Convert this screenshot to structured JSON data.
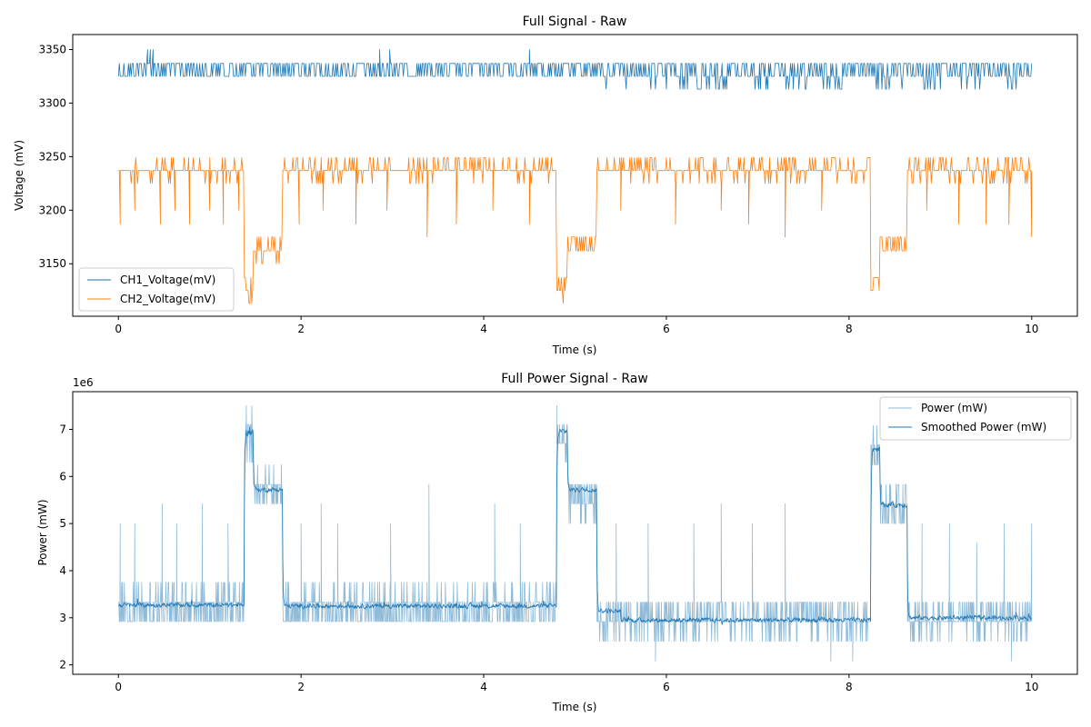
{
  "chart_data": [
    {
      "type": "line",
      "title": "Full Signal - Raw",
      "xlabel": "Time (s)",
      "ylabel": "Voltage (mV)",
      "xlim": [
        -0.5,
        10.5
      ],
      "ylim": [
        3101,
        3364
      ],
      "x_ticks": [
        0,
        2,
        4,
        6,
        8,
        10
      ],
      "x_tick_labels": [
        "0",
        "2",
        "4",
        "6",
        "8",
        "10"
      ],
      "y_ticks": [
        3150,
        3200,
        3250,
        3300,
        3350
      ],
      "y_tick_labels": [
        "3150",
        "3200",
        "3250",
        "3300",
        "3350"
      ],
      "grid": false,
      "legend": "lower-left",
      "series": [
        {
          "name": "CH1_Voltage(mV)",
          "color": "#1f77b4",
          "line_width": 0.8,
          "sample_dt": 0.01,
          "base_segments": [
            {
              "x0": 0,
              "x1": 10,
              "levels": [
                3337,
                3325
              ],
              "weights": [
                0.55,
                0.45
              ]
            }
          ],
          "excursion_segments": [
            {
              "x0": 5.3,
              "x1": 10,
              "value": 3313,
              "rate": 0.12
            }
          ],
          "spikes": [
            {
              "x": 0.32,
              "value": 3350
            },
            {
              "x": 0.35,
              "value": 3350
            },
            {
              "x": 0.38,
              "value": 3350
            },
            {
              "x": 2.86,
              "value": 3350
            },
            {
              "x": 2.97,
              "value": 3350
            },
            {
              "x": 4.5,
              "value": 3350
            }
          ]
        },
        {
          "name": "CH2_Voltage(mV)",
          "color": "#ff7f0e",
          "line_width": 0.8,
          "sample_dt": 0.01,
          "base_segments": [
            {
              "x0": 0,
              "x1": 1.38,
              "levels": [
                3237,
                3249,
                3225
              ],
              "weights": [
                0.78,
                0.12,
                0.1
              ]
            },
            {
              "x0": 1.38,
              "x1": 1.48,
              "levels": [
                3125,
                3137,
                3113
              ],
              "weights": [
                0.5,
                0.3,
                0.2
              ]
            },
            {
              "x0": 1.48,
              "x1": 1.8,
              "levels": [
                3162,
                3175,
                3150
              ],
              "weights": [
                0.55,
                0.3,
                0.15
              ]
            },
            {
              "x0": 1.8,
              "x1": 4.8,
              "levels": [
                3237,
                3249,
                3225
              ],
              "weights": [
                0.7,
                0.22,
                0.08
              ]
            },
            {
              "x0": 4.8,
              "x1": 4.92,
              "levels": [
                3125,
                3137,
                3113
              ],
              "weights": [
                0.55,
                0.3,
                0.15
              ]
            },
            {
              "x0": 4.92,
              "x1": 5.24,
              "levels": [
                3162,
                3175
              ],
              "weights": [
                0.6,
                0.4
              ]
            },
            {
              "x0": 5.24,
              "x1": 8.24,
              "levels": [
                3237,
                3249,
                3225
              ],
              "weights": [
                0.72,
                0.2,
                0.08
              ]
            },
            {
              "x0": 8.24,
              "x1": 8.34,
              "levels": [
                3125,
                3137
              ],
              "weights": [
                0.6,
                0.4
              ]
            },
            {
              "x0": 8.34,
              "x1": 8.64,
              "levels": [
                3162,
                3175
              ],
              "weights": [
                0.55,
                0.45
              ]
            },
            {
              "x0": 8.64,
              "x1": 10,
              "levels": [
                3237,
                3249,
                3225
              ],
              "weights": [
                0.72,
                0.2,
                0.08
              ]
            }
          ],
          "excursion_segments": [],
          "spikes": [
            {
              "x": 0.02,
              "value": 3187
            },
            {
              "x": 0.18,
              "value": 3200
            },
            {
              "x": 0.46,
              "value": 3187
            },
            {
              "x": 0.62,
              "value": 3200
            },
            {
              "x": 0.78,
              "value": 3187
            },
            {
              "x": 1.0,
              "value": 3200
            },
            {
              "x": 1.15,
              "value": 3187
            },
            {
              "x": 1.32,
              "value": 3200
            },
            {
              "x": 1.98,
              "value": 3187
            },
            {
              "x": 2.24,
              "value": 3200
            },
            {
              "x": 2.6,
              "value": 3187
            },
            {
              "x": 2.94,
              "value": 3200
            },
            {
              "x": 3.38,
              "value": 3175
            },
            {
              "x": 3.7,
              "value": 3187
            },
            {
              "x": 4.1,
              "value": 3200
            },
            {
              "x": 4.5,
              "value": 3187
            },
            {
              "x": 5.5,
              "value": 3200
            },
            {
              "x": 6.1,
              "value": 3187
            },
            {
              "x": 6.6,
              "value": 3200
            },
            {
              "x": 6.9,
              "value": 3187
            },
            {
              "x": 7.3,
              "value": 3175
            },
            {
              "x": 7.7,
              "value": 3200
            },
            {
              "x": 8.85,
              "value": 3200
            },
            {
              "x": 9.2,
              "value": 3187
            },
            {
              "x": 9.5,
              "value": 3187
            },
            {
              "x": 9.75,
              "value": 3187
            },
            {
              "x": 10.0,
              "value": 3175
            }
          ]
        }
      ]
    },
    {
      "type": "line",
      "title": "Full Power Signal - Raw",
      "xlabel": "Time (s)",
      "ylabel": "Power (mW)",
      "offset_label": "1e6",
      "xlim": [
        -0.5,
        10.5
      ],
      "ylim": [
        1.8,
        7.8
      ],
      "x_ticks": [
        0,
        2,
        4,
        6,
        8,
        10
      ],
      "x_tick_labels": [
        "0",
        "2",
        "4",
        "6",
        "8",
        "10"
      ],
      "y_ticks": [
        2,
        3,
        4,
        5,
        6,
        7
      ],
      "y_tick_labels": [
        "2",
        "3",
        "4",
        "5",
        "6",
        "7"
      ],
      "grid": false,
      "legend": "upper-right",
      "series": [
        {
          "name": "Power (mW)",
          "color": "#1f77b4",
          "opacity": 0.5,
          "line_width": 0.8,
          "sample_dt": 0.005,
          "base_segments": [
            {
              "x0": 0,
              "x1": 1.38,
              "levels": [
                2.92,
                3.33,
                3.75
              ],
              "weights": [
                0.45,
                0.43,
                0.12
              ]
            },
            {
              "x0": 1.38,
              "x1": 1.48,
              "levels": [
                6.7,
                7.1,
                6.3
              ],
              "weights": [
                0.5,
                0.35,
                0.15
              ]
            },
            {
              "x0": 1.48,
              "x1": 1.8,
              "levels": [
                5.42,
                5.83,
                6.25
              ],
              "weights": [
                0.42,
                0.46,
                0.12
              ]
            },
            {
              "x0": 1.8,
              "x1": 4.8,
              "levels": [
                2.92,
                3.33,
                3.75
              ],
              "weights": [
                0.45,
                0.45,
                0.1
              ]
            },
            {
              "x0": 4.8,
              "x1": 4.92,
              "levels": [
                6.7,
                7.1,
                6.3
              ],
              "weights": [
                0.45,
                0.45,
                0.1
              ]
            },
            {
              "x0": 4.92,
              "x1": 5.24,
              "levels": [
                5.42,
                5.83,
                5.0
              ],
              "weights": [
                0.5,
                0.4,
                0.1
              ]
            },
            {
              "x0": 5.24,
              "x1": 8.24,
              "levels": [
                2.92,
                3.33,
                2.5
              ],
              "weights": [
                0.55,
                0.3,
                0.15
              ]
            },
            {
              "x0": 8.24,
              "x1": 8.34,
              "levels": [
                6.25,
                6.67,
                7.08
              ],
              "weights": [
                0.4,
                0.4,
                0.2
              ]
            },
            {
              "x0": 8.34,
              "x1": 8.64,
              "levels": [
                5.0,
                5.42,
                5.83
              ],
              "weights": [
                0.4,
                0.4,
                0.2
              ]
            },
            {
              "x0": 8.64,
              "x1": 10,
              "levels": [
                2.92,
                3.33,
                2.5
              ],
              "weights": [
                0.55,
                0.3,
                0.15
              ]
            }
          ],
          "excursion_segments": [],
          "spikes": [
            {
              "x": 0.02,
              "value": 5.0
            },
            {
              "x": 0.18,
              "value": 5.0
            },
            {
              "x": 0.48,
              "value": 5.42
            },
            {
              "x": 0.64,
              "value": 5.0
            },
            {
              "x": 0.92,
              "value": 5.42
            },
            {
              "x": 1.2,
              "value": 5.0
            },
            {
              "x": 1.4,
              "value": 7.5
            },
            {
              "x": 1.46,
              "value": 7.5
            },
            {
              "x": 2.0,
              "value": 5.0
            },
            {
              "x": 2.22,
              "value": 5.42
            },
            {
              "x": 2.4,
              "value": 5.0
            },
            {
              "x": 2.98,
              "value": 5.0
            },
            {
              "x": 3.4,
              "value": 5.83
            },
            {
              "x": 4.12,
              "value": 5.42
            },
            {
              "x": 4.4,
              "value": 5.0
            },
            {
              "x": 4.8,
              "value": 7.5
            },
            {
              "x": 5.45,
              "value": 5.0
            },
            {
              "x": 5.8,
              "value": 5.0
            },
            {
              "x": 5.88,
              "value": 2.08
            },
            {
              "x": 6.3,
              "value": 5.0
            },
            {
              "x": 6.6,
              "value": 5.42
            },
            {
              "x": 6.94,
              "value": 5.0
            },
            {
              "x": 7.3,
              "value": 5.42
            },
            {
              "x": 7.8,
              "value": 2.08
            },
            {
              "x": 8.04,
              "value": 2.08
            },
            {
              "x": 8.8,
              "value": 5.0
            },
            {
              "x": 9.1,
              "value": 5.0
            },
            {
              "x": 9.4,
              "value": 4.58
            },
            {
              "x": 9.7,
              "value": 5.0
            },
            {
              "x": 9.78,
              "value": 2.08
            },
            {
              "x": 10.0,
              "value": 5.0
            }
          ]
        },
        {
          "name": "Smoothed Power (mW)",
          "color": "#1f77b4",
          "opacity": 1,
          "line_width": 0.8,
          "sample_dt": 0.005,
          "smooth_segments": [
            {
              "x0": 0,
              "x1": 1.38,
              "mean": 3.27,
              "noise": 0.07
            },
            {
              "x0": 1.38,
              "x1": 1.48,
              "mean": 6.95,
              "noise": 0.12
            },
            {
              "x0": 1.48,
              "x1": 1.8,
              "mean": 5.72,
              "noise": 0.07
            },
            {
              "x0": 1.8,
              "x1": 4.8,
              "mean": 3.25,
              "noise": 0.07
            },
            {
              "x0": 4.8,
              "x1": 4.92,
              "mean": 6.95,
              "noise": 0.1
            },
            {
              "x0": 4.92,
              "x1": 5.24,
              "mean": 5.72,
              "noise": 0.07
            },
            {
              "x0": 5.24,
              "x1": 5.5,
              "mean": 3.15,
              "noise": 0.08
            },
            {
              "x0": 5.5,
              "x1": 8.24,
              "mean": 2.95,
              "noise": 0.07
            },
            {
              "x0": 8.24,
              "x1": 8.34,
              "mean": 6.6,
              "noise": 0.12
            },
            {
              "x0": 8.34,
              "x1": 8.64,
              "mean": 5.4,
              "noise": 0.08
            },
            {
              "x0": 8.64,
              "x1": 10,
              "mean": 3.0,
              "noise": 0.07
            }
          ]
        }
      ]
    }
  ]
}
